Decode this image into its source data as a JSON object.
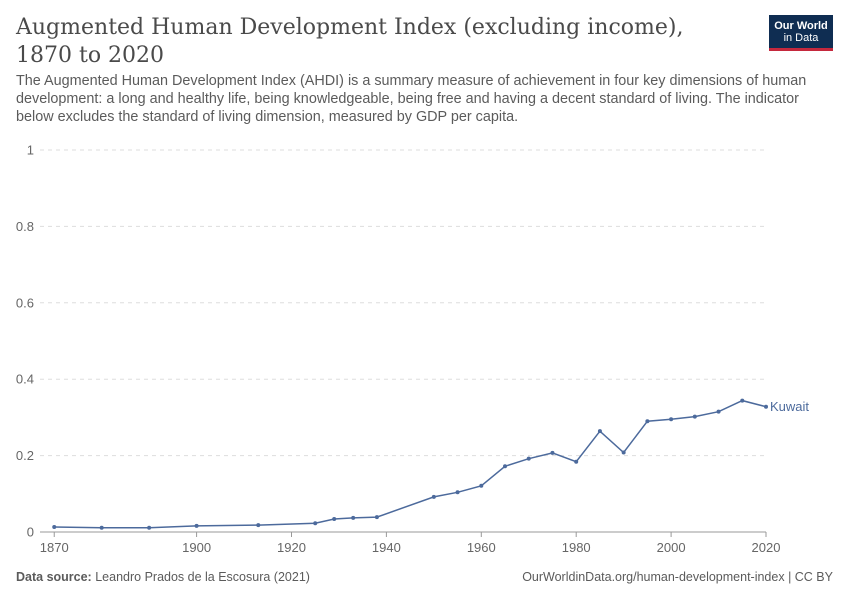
{
  "title": "Augmented Human Development Index (excluding income), 1870 to 2020",
  "subtitle": "The Augmented Human Development Index (AHDI) is a summary measure of achievement in four key dimensions of human development: a long and healthy life, being knowledgeable, being free and having a decent standard of living. The indicator below excludes the standard of living dimension, measured by GDP per capita.",
  "logo": {
    "line1": "Our World",
    "line2": "in Data"
  },
  "footer": {
    "source_label": "Data source:",
    "source_text": "Leandro Prados de la Escosura (2021)",
    "url": "OurWorldinData.org/human-development-index | CC BY"
  },
  "colors": {
    "series": "#4c6a9c",
    "grid": "#dddddd",
    "text": "#5b5b5b"
  },
  "chart_data": {
    "type": "line",
    "xlim": [
      1867,
      2020
    ],
    "ylim": [
      0,
      1
    ],
    "xticks": [
      1870,
      1900,
      1920,
      1940,
      1960,
      1980,
      2000,
      2020
    ],
    "xtick_labels": [
      "1870",
      "1900",
      "1920",
      "1940",
      "1960",
      "1980",
      "2000",
      "2020"
    ],
    "yticks": [
      0,
      0.2,
      0.4,
      0.6,
      0.8,
      1
    ],
    "ytick_labels": [
      "0",
      "0.2",
      "0.4",
      "0.6",
      "0.8",
      "1"
    ],
    "grid": true,
    "series": [
      {
        "name": "Kuwait",
        "x": [
          1870,
          1880,
          1890,
          1900,
          1913,
          1925,
          1929,
          1933,
          1938,
          1950,
          1955,
          1960,
          1965,
          1970,
          1975,
          1980,
          1985,
          1990,
          1995,
          2000,
          2005,
          2010,
          2015,
          2020
        ],
        "y": [
          0.013,
          0.011,
          0.011,
          0.016,
          0.018,
          0.023,
          0.034,
          0.037,
          0.039,
          0.092,
          0.104,
          0.121,
          0.172,
          0.192,
          0.207,
          0.184,
          0.264,
          0.208,
          0.29,
          0.295,
          0.302,
          0.315,
          0.344,
          0.328
        ]
      }
    ]
  }
}
